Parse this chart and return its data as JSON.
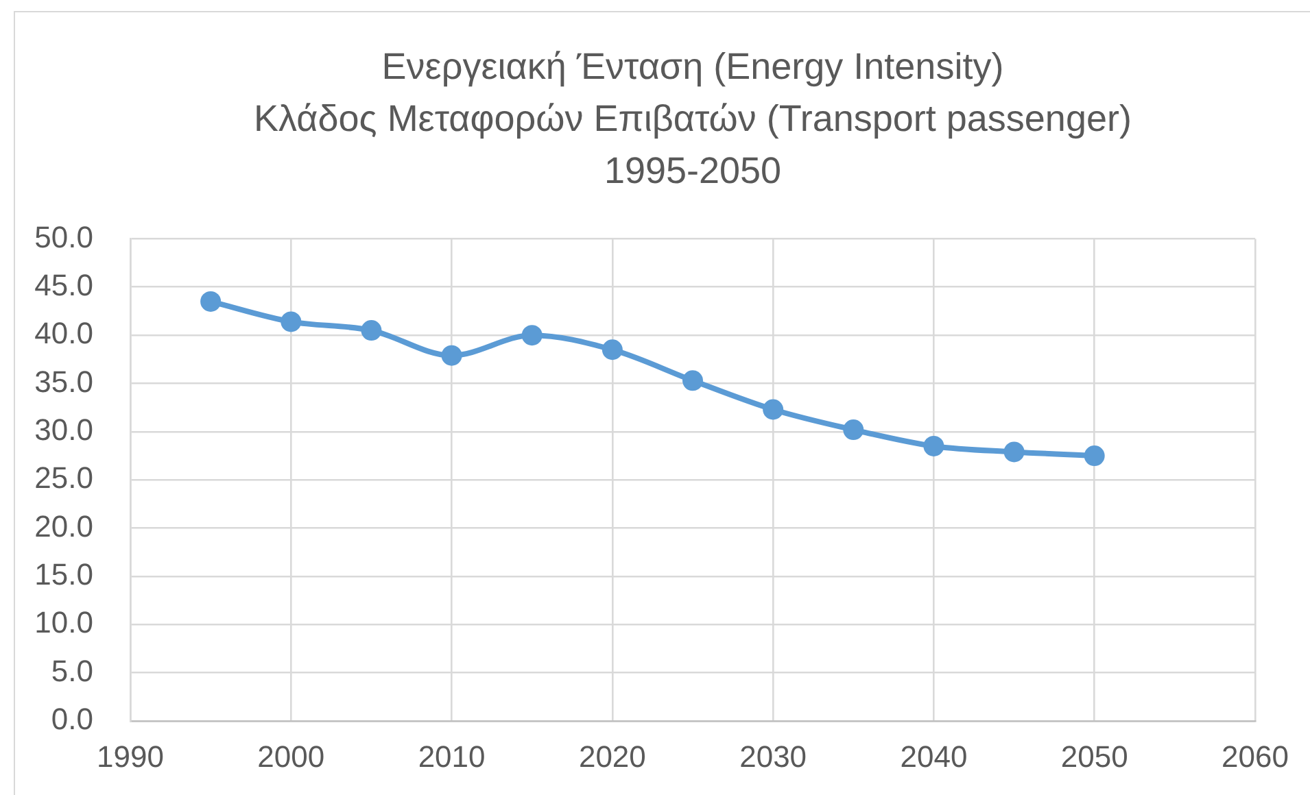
{
  "chart_data": {
    "type": "line",
    "title": "Ενεργειακή Ένταση (Energy Intensity)\nΚλάδος Μεταφορών Επιβατών (Transport passenger)\n1995-2050",
    "x": [
      1995,
      2000,
      2005,
      2010,
      2015,
      2020,
      2025,
      2030,
      2035,
      2040,
      2045,
      2050
    ],
    "series": [
      {
        "color": "#5b9bd5",
        "values": [
          43.5,
          41.4,
          40.5,
          37.9,
          40.0,
          38.5,
          35.3,
          32.3,
          30.2,
          28.5,
          27.9,
          27.5
        ]
      }
    ],
    "xlim": [
      1990,
      2060
    ],
    "xticks": [
      1990,
      2000,
      2010,
      2020,
      2030,
      2040,
      2050,
      2060
    ],
    "ylim": [
      0,
      50
    ],
    "yticks": [
      {
        "value": 0,
        "label": "0.0"
      },
      {
        "value": 5,
        "label": "5.0"
      },
      {
        "value": 10,
        "label": "10.0"
      },
      {
        "value": 15,
        "label": "15.0"
      },
      {
        "value": 20,
        "label": "20.0"
      },
      {
        "value": 25,
        "label": "25.0"
      },
      {
        "value": 30,
        "label": "30.0"
      },
      {
        "value": 35,
        "label": "35.0"
      },
      {
        "value": 40,
        "label": "40.0"
      },
      {
        "value": 45,
        "label": "45.0"
      },
      {
        "value": 50,
        "label": "50.0"
      }
    ],
    "grid": true,
    "marker": "circle",
    "line_style": "solid"
  }
}
